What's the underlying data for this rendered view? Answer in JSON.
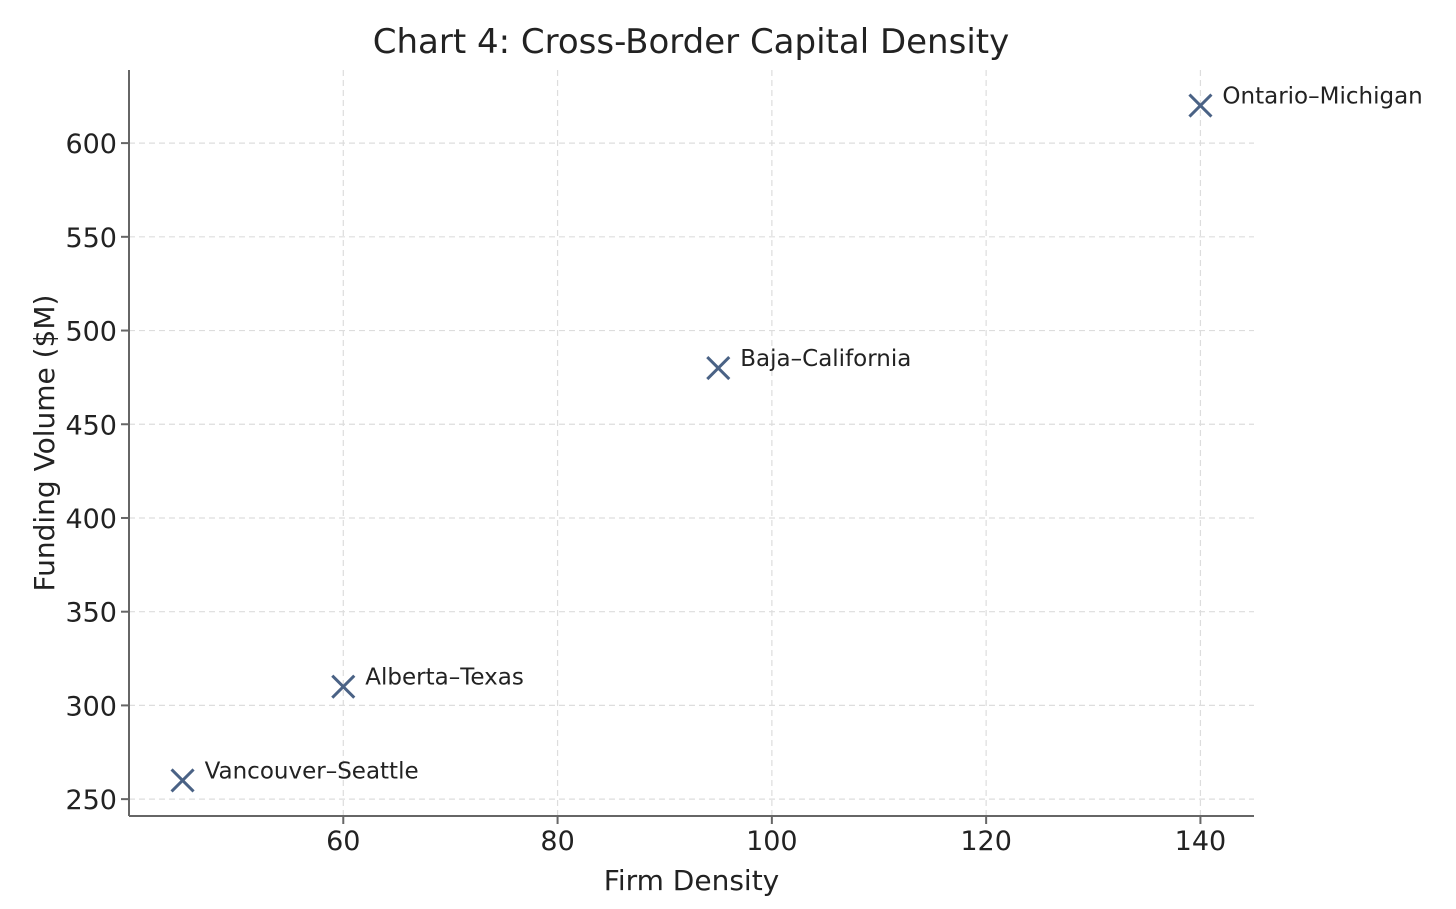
{
  "chart_data": {
    "type": "scatter",
    "title": "Chart 4: Cross-Border Capital Density",
    "xlabel": "Firm Density",
    "ylabel": "Funding Volume ($M)",
    "xlim": [
      40,
      145
    ],
    "ylim": [
      241,
      639
    ],
    "xticks": [
      60,
      80,
      100,
      120,
      140
    ],
    "yticks": [
      250,
      300,
      350,
      400,
      450,
      500,
      550,
      600
    ],
    "grid": true,
    "marker": "x",
    "marker_color": "#4a6285",
    "series": [
      {
        "points": [
          {
            "label": "Vancouver–Seattle",
            "x": 45,
            "y": 260
          },
          {
            "label": "Alberta–Texas",
            "x": 60,
            "y": 310
          },
          {
            "label": "Baja–California",
            "x": 95,
            "y": 480
          },
          {
            "label": "Ontario–Michigan",
            "x": 140,
            "y": 620
          }
        ]
      }
    ]
  }
}
